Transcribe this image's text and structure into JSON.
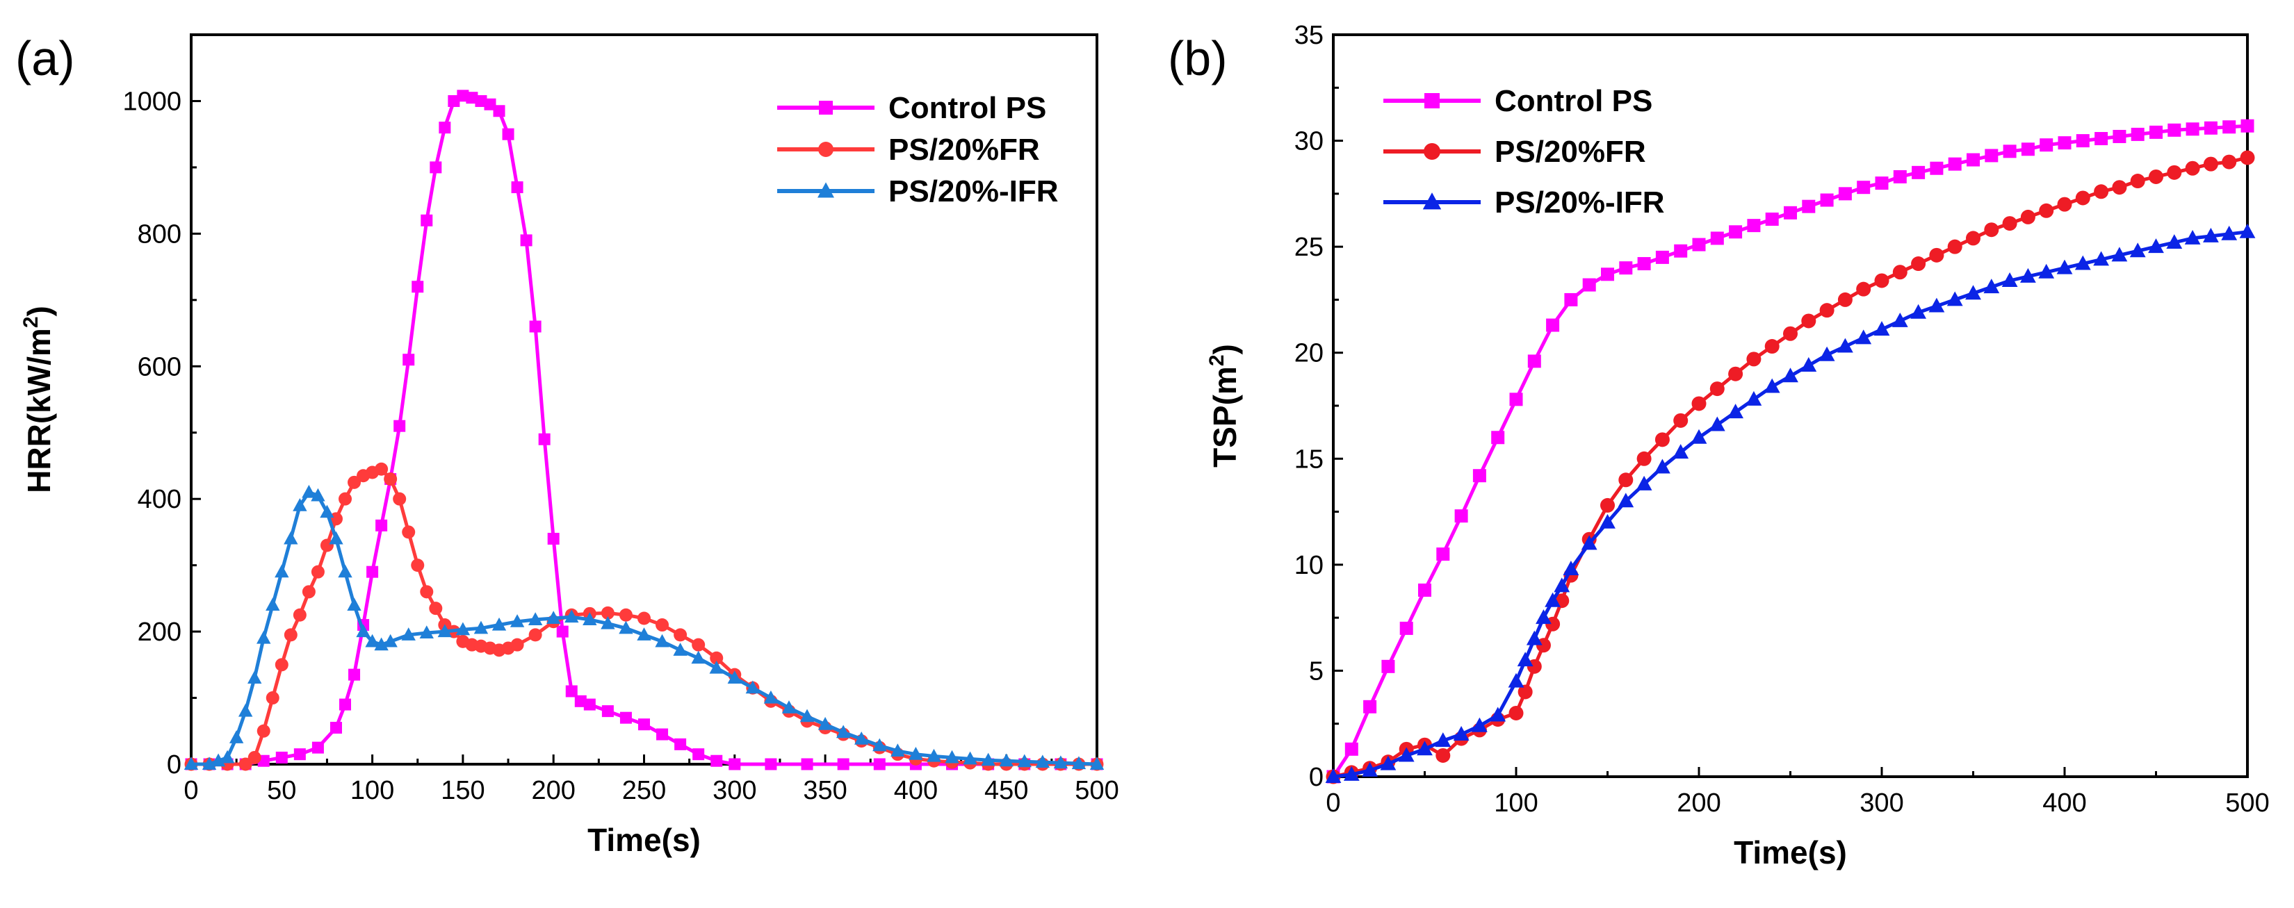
{
  "chart_data": [
    {
      "type": "line",
      "panel_label": "(a)",
      "title": "",
      "xlabel": "Time(s)",
      "ylabel": "HRR(kW/m",
      "ylabel_sup": "2",
      "ylabel_close": ")",
      "xlim": [
        0,
        500
      ],
      "ylim": [
        0,
        1100
      ],
      "xticks": [
        0,
        50,
        100,
        150,
        200,
        250,
        300,
        350,
        400,
        450,
        500
      ],
      "yticks": [
        0,
        200,
        400,
        600,
        800,
        1000
      ],
      "legend_position": "top-right",
      "series": [
        {
          "name": "Control PS",
          "color": "#ff00ff",
          "marker": "square",
          "x": [
            0,
            10,
            20,
            30,
            40,
            50,
            60,
            70,
            80,
            85,
            90,
            95,
            100,
            105,
            110,
            115,
            120,
            125,
            130,
            135,
            140,
            145,
            150,
            155,
            160,
            165,
            170,
            175,
            180,
            185,
            190,
            195,
            200,
            205,
            210,
            215,
            220,
            230,
            240,
            250,
            260,
            270,
            280,
            290,
            300,
            320,
            340,
            360,
            380,
            400,
            420,
            440,
            460,
            480,
            500
          ],
          "y": [
            0,
            0,
            0,
            0,
            5,
            10,
            15,
            25,
            55,
            90,
            135,
            210,
            290,
            360,
            430,
            510,
            610,
            720,
            820,
            900,
            960,
            1000,
            1008,
            1005,
            1000,
            995,
            985,
            950,
            870,
            790,
            660,
            490,
            340,
            200,
            110,
            95,
            90,
            80,
            70,
            60,
            45,
            30,
            15,
            5,
            0,
            0,
            0,
            0,
            0,
            0,
            0,
            0,
            0,
            0,
            0
          ]
        },
        {
          "name": "PS/20%FR",
          "color": "#ff3b3b",
          "marker": "circle",
          "x": [
            0,
            10,
            20,
            30,
            35,
            40,
            45,
            50,
            55,
            60,
            65,
            70,
            75,
            80,
            85,
            90,
            95,
            100,
            105,
            110,
            115,
            120,
            125,
            130,
            135,
            140,
            145,
            150,
            155,
            160,
            165,
            170,
            175,
            180,
            190,
            200,
            210,
            220,
            230,
            240,
            250,
            260,
            270,
            280,
            290,
            300,
            310,
            320,
            330,
            340,
            350,
            360,
            370,
            380,
            390,
            400,
            410,
            420,
            430,
            440,
            450,
            460,
            470,
            480,
            490,
            500
          ],
          "y": [
            0,
            0,
            0,
            0,
            10,
            50,
            100,
            150,
            195,
            225,
            260,
            290,
            330,
            370,
            400,
            425,
            435,
            440,
            445,
            430,
            400,
            350,
            300,
            260,
            235,
            210,
            200,
            185,
            180,
            178,
            175,
            172,
            175,
            180,
            195,
            215,
            225,
            227,
            228,
            225,
            220,
            210,
            195,
            180,
            160,
            135,
            115,
            95,
            80,
            65,
            55,
            45,
            35,
            25,
            15,
            8,
            5,
            3,
            2,
            0,
            0,
            0,
            0,
            0,
            0,
            0
          ]
        },
        {
          "name": "PS/20%-IFR",
          "color": "#1f7fd8",
          "marker": "triangle",
          "x": [
            0,
            10,
            15,
            20,
            25,
            30,
            35,
            40,
            45,
            50,
            55,
            60,
            65,
            70,
            75,
            80,
            85,
            90,
            95,
            100,
            105,
            110,
            120,
            130,
            140,
            150,
            160,
            170,
            180,
            190,
            200,
            210,
            220,
            230,
            240,
            250,
            260,
            270,
            280,
            290,
            300,
            310,
            320,
            330,
            340,
            350,
            360,
            370,
            380,
            390,
            400,
            410,
            420,
            430,
            440,
            450,
            460,
            470,
            480,
            490,
            500
          ],
          "y": [
            0,
            0,
            5,
            10,
            40,
            80,
            130,
            190,
            240,
            290,
            340,
            390,
            410,
            405,
            380,
            340,
            290,
            240,
            200,
            185,
            180,
            185,
            195,
            198,
            200,
            203,
            205,
            210,
            215,
            218,
            220,
            222,
            218,
            212,
            205,
            195,
            185,
            172,
            160,
            145,
            130,
            115,
            100,
            85,
            72,
            60,
            48,
            38,
            28,
            20,
            15,
            12,
            10,
            8,
            6,
            5,
            4,
            3,
            2,
            1,
            0
          ]
        }
      ]
    },
    {
      "type": "line",
      "panel_label": "(b)",
      "title": "",
      "xlabel": "Time(s)",
      "ylabel": "TSP(m",
      "ylabel_sup": "2",
      "ylabel_close": ")",
      "xlim": [
        0,
        500
      ],
      "ylim": [
        0,
        35
      ],
      "xticks": [
        0,
        100,
        200,
        300,
        400,
        500
      ],
      "yticks": [
        0,
        5,
        10,
        15,
        20,
        25,
        30,
        35
      ],
      "legend_position": "top-left",
      "series": [
        {
          "name": "Control PS",
          "color": "#ff00ff",
          "marker": "square",
          "x": [
            0,
            10,
            20,
            30,
            40,
            50,
            60,
            70,
            80,
            90,
            100,
            110,
            120,
            130,
            140,
            150,
            160,
            170,
            180,
            190,
            200,
            210,
            220,
            230,
            240,
            250,
            260,
            270,
            280,
            290,
            300,
            310,
            320,
            330,
            340,
            350,
            360,
            370,
            380,
            390,
            400,
            410,
            420,
            430,
            440,
            450,
            460,
            470,
            480,
            490,
            500
          ],
          "y": [
            0,
            1.3,
            3.3,
            5.2,
            7.0,
            8.8,
            10.5,
            12.3,
            14.2,
            16.0,
            17.8,
            19.6,
            21.3,
            22.5,
            23.2,
            23.7,
            24.0,
            24.2,
            24.5,
            24.8,
            25.1,
            25.4,
            25.7,
            26.0,
            26.3,
            26.6,
            26.9,
            27.2,
            27.5,
            27.8,
            28.0,
            28.3,
            28.5,
            28.7,
            28.9,
            29.1,
            29.3,
            29.5,
            29.6,
            29.8,
            29.9,
            30.0,
            30.1,
            30.2,
            30.3,
            30.4,
            30.5,
            30.55,
            30.6,
            30.65,
            30.7
          ]
        },
        {
          "name": "PS/20%FR",
          "color": "#ee1c25",
          "marker": "circle",
          "x": [
            0,
            10,
            20,
            30,
            40,
            50,
            60,
            70,
            80,
            90,
            100,
            105,
            110,
            115,
            120,
            125,
            130,
            140,
            150,
            160,
            170,
            180,
            190,
            200,
            210,
            220,
            230,
            240,
            250,
            260,
            270,
            280,
            290,
            300,
            310,
            320,
            330,
            340,
            350,
            360,
            370,
            380,
            390,
            400,
            410,
            420,
            430,
            440,
            450,
            460,
            470,
            480,
            490,
            500
          ],
          "y": [
            0,
            0.2,
            0.4,
            0.7,
            1.3,
            1.5,
            1.0,
            1.8,
            2.2,
            2.7,
            3.0,
            4.0,
            5.2,
            6.2,
            7.2,
            8.3,
            9.5,
            11.2,
            12.8,
            14.0,
            15.0,
            15.9,
            16.8,
            17.6,
            18.3,
            19.0,
            19.7,
            20.3,
            20.9,
            21.5,
            22.0,
            22.5,
            23.0,
            23.4,
            23.8,
            24.2,
            24.6,
            25.0,
            25.4,
            25.8,
            26.1,
            26.4,
            26.7,
            27.0,
            27.3,
            27.6,
            27.8,
            28.1,
            28.3,
            28.5,
            28.7,
            28.9,
            29.0,
            29.2
          ]
        },
        {
          "name": "PS/20%-IFR",
          "color": "#0b24e6",
          "marker": "triangle",
          "x": [
            0,
            10,
            20,
            30,
            40,
            50,
            60,
            70,
            80,
            90,
            100,
            105,
            110,
            115,
            120,
            125,
            130,
            140,
            150,
            160,
            170,
            180,
            190,
            200,
            210,
            220,
            230,
            240,
            250,
            260,
            270,
            280,
            290,
            300,
            310,
            320,
            330,
            340,
            350,
            360,
            370,
            380,
            390,
            400,
            410,
            420,
            430,
            440,
            450,
            460,
            470,
            480,
            490,
            500
          ],
          "y": [
            0,
            0.1,
            0.3,
            0.6,
            1.0,
            1.3,
            1.7,
            2.0,
            2.4,
            2.9,
            4.5,
            5.5,
            6.5,
            7.5,
            8.3,
            9.0,
            9.8,
            11.0,
            12.0,
            13.0,
            13.8,
            14.6,
            15.3,
            16.0,
            16.6,
            17.2,
            17.8,
            18.4,
            18.9,
            19.4,
            19.9,
            20.3,
            20.7,
            21.1,
            21.5,
            21.9,
            22.2,
            22.5,
            22.8,
            23.1,
            23.4,
            23.6,
            23.8,
            24.0,
            24.2,
            24.4,
            24.6,
            24.8,
            25.0,
            25.2,
            25.4,
            25.5,
            25.6,
            25.7
          ]
        }
      ]
    }
  ]
}
